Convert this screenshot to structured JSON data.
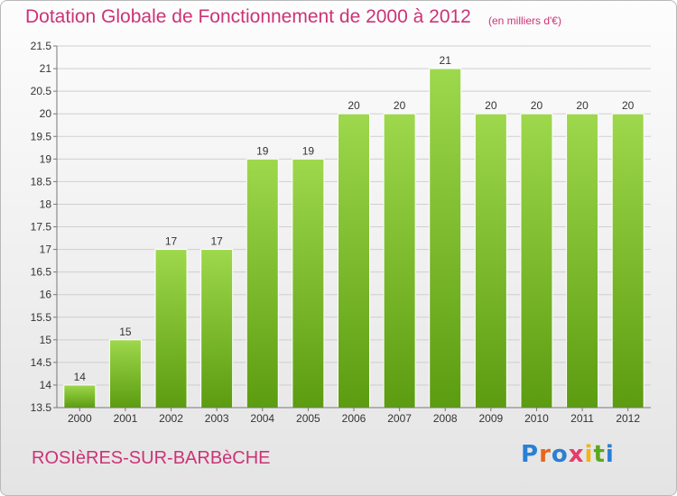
{
  "title": "Dotation Globale de Fonctionnement de 2000 à 2012",
  "subtitle": "(en milliers d'€)",
  "place_name": "ROSIèRES-SUR-BARBèCHE",
  "logo": {
    "text": "Proxiti",
    "letters": [
      {
        "ch": "P",
        "color": "#2b7fd4"
      },
      {
        "ch": "r",
        "color": "#e8661c"
      },
      {
        "ch": "o",
        "color": "#2b7fd4"
      },
      {
        "ch": "x",
        "color": "#e83a6a"
      },
      {
        "ch": "i",
        "color": "#f2b417"
      },
      {
        "ch": "t",
        "color": "#5aa91c"
      },
      {
        "ch": "i",
        "color": "#2b7fd4"
      }
    ]
  },
  "colors": {
    "title": "#cc3377",
    "bar_top": "#9ed84c",
    "bar_bottom": "#5c9c10",
    "grid": "#cfcfcf",
    "axis": "#777777",
    "text": "#333333"
  },
  "chart_data": {
    "type": "bar",
    "title": "Dotation Globale de Fonctionnement de 2000 à 2012",
    "subtitle": "(en milliers d'€)",
    "xlabel": "",
    "ylabel": "",
    "categories": [
      "2000",
      "2001",
      "2002",
      "2003",
      "2004",
      "2005",
      "2006",
      "2007",
      "2008",
      "2009",
      "2010",
      "2011",
      "2012"
    ],
    "values": [
      14,
      15,
      17,
      17,
      19,
      19,
      20,
      20,
      21,
      20,
      20,
      20,
      20
    ],
    "data_labels": [
      "14",
      "15",
      "17",
      "17",
      "19",
      "19",
      "20",
      "20",
      "21",
      "20",
      "20",
      "20",
      "20"
    ],
    "ylim": [
      13.5,
      21.5
    ],
    "yticks": [
      13.5,
      14,
      14.5,
      15,
      15.5,
      16,
      16.5,
      17,
      17.5,
      18,
      18.5,
      19,
      19.5,
      20,
      20.5,
      21,
      21.5
    ],
    "ytick_labels": [
      "13.5",
      "14",
      "14.5",
      "15",
      "15.5",
      "16",
      "16.5",
      "17",
      "17.5",
      "18",
      "18.5",
      "19",
      "19.5",
      "20",
      "20.5",
      "21",
      "21.5"
    ],
    "grid": true,
    "legend": "none"
  }
}
